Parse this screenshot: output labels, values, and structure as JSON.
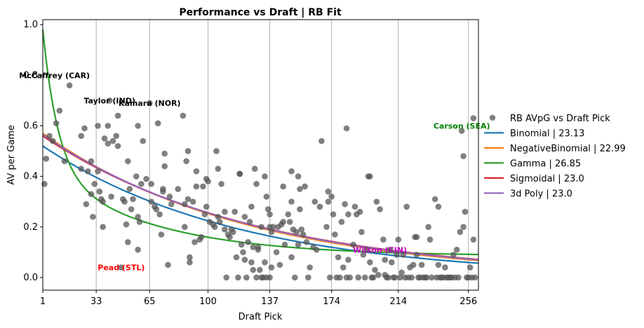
{
  "chart_data": {
    "type": "scatter",
    "title": "Performance vs Draft | RB Fit",
    "xlabel": "Draft Pick",
    "ylabel": "AV per Game",
    "xlim": [
      1,
      262
    ],
    "ylim": [
      -0.05,
      1.02
    ],
    "x_ticks": [
      1,
      33,
      65,
      100,
      137,
      174,
      214,
      256
    ],
    "y_ticks": [
      0.0,
      0.2,
      0.4,
      0.6,
      0.8,
      1.0
    ],
    "y_tick_labels": [
      "0.0",
      "0.2",
      "0.4",
      "0.6",
      "0.8",
      "1.0"
    ],
    "grid": "vertical lines at x ticks",
    "legend_position": "outside-right",
    "scatter": {
      "name": "RB AVpG vs Draft Pick",
      "color": "#555555",
      "points": [
        [
          2,
          0.37
        ],
        [
          3,
          0.47
        ],
        [
          5,
          0.56
        ],
        [
          7,
          0.54
        ],
        [
          9,
          0.61
        ],
        [
          11,
          0.66
        ],
        [
          14,
          0.46
        ],
        [
          17,
          0.76
        ],
        [
          24,
          0.56
        ],
        [
          24,
          0.43
        ],
        [
          26,
          0.59
        ],
        [
          27,
          0.29
        ],
        [
          28,
          0.42
        ],
        [
          30,
          0.46
        ],
        [
          30,
          0.33
        ],
        [
          31,
          0.24
        ],
        [
          32,
          0.37
        ],
        [
          34,
          0.6
        ],
        [
          34,
          0.42
        ],
        [
          35,
          0.34
        ],
        [
          36,
          0.31
        ],
        [
          37,
          0.3
        ],
        [
          37,
          0.2
        ],
        [
          38,
          0.55
        ],
        [
          40,
          0.6
        ],
        [
          40,
          0.53
        ],
        [
          41,
          0.7
        ],
        [
          42,
          0.32
        ],
        [
          43,
          0.54
        ],
        [
          45,
          0.56
        ],
        [
          46,
          0.64
        ],
        [
          46,
          0.52
        ],
        [
          48,
          0.04
        ],
        [
          49,
          0.31
        ],
        [
          50,
          0.3
        ],
        [
          51,
          0.21
        ],
        [
          52,
          0.14
        ],
        [
          52,
          0.46
        ],
        [
          53,
          0.35
        ],
        [
          54,
          0.27
        ],
        [
          55,
          0.31
        ],
        [
          57,
          0.4
        ],
        [
          58,
          0.6
        ],
        [
          58,
          0.24
        ],
        [
          58,
          0.11
        ],
        [
          59,
          0.22
        ],
        [
          60,
          0.37
        ],
        [
          61,
          0.54
        ],
        [
          63,
          0.39
        ],
        [
          65,
          0.69
        ],
        [
          66,
          0.37
        ],
        [
          66,
          0.3
        ],
        [
          68,
          0.28
        ],
        [
          69,
          0.27
        ],
        [
          70,
          0.61
        ],
        [
          71,
          0.25
        ],
        [
          72,
          0.17
        ],
        [
          73,
          0.34
        ],
        [
          73,
          0.35
        ],
        [
          74,
          0.49
        ],
        [
          74,
          0.44
        ],
        [
          76,
          0.05
        ],
        [
          77,
          0.32
        ],
        [
          78,
          0.29
        ],
        [
          82,
          0.35
        ],
        [
          85,
          0.64
        ],
        [
          86,
          0.2
        ],
        [
          86,
          0.29
        ],
        [
          87,
          0.46
        ],
        [
          88,
          0.5
        ],
        [
          88,
          0.31
        ],
        [
          89,
          0.08
        ],
        [
          89,
          0.06
        ],
        [
          91,
          0.3
        ],
        [
          92,
          0.14
        ],
        [
          93,
          0.42
        ],
        [
          93,
          0.36
        ],
        [
          95,
          0.15
        ],
        [
          96,
          0.16
        ],
        [
          97,
          0.36
        ],
        [
          98,
          0.25
        ],
        [
          99,
          0.28
        ],
        [
          99,
          0.39
        ],
        [
          100,
          0.38
        ],
        [
          101,
          0.22
        ],
        [
          103,
          0.21
        ],
        [
          104,
          0.2
        ],
        [
          105,
          0.5
        ],
        [
          106,
          0.24
        ],
        [
          106,
          0.43
        ],
        [
          107,
          0.22
        ],
        [
          108,
          0.37
        ],
        [
          110,
          0.19
        ],
        [
          110,
          0.26
        ],
        [
          111,
          0.0
        ],
        [
          112,
          0.17
        ],
        [
          113,
          0.16
        ],
        [
          114,
          0.19
        ],
        [
          115,
          0.18
        ],
        [
          116,
          0.26
        ],
        [
          117,
          0.08
        ],
        [
          118,
          0.0
        ],
        [
          119,
          0.41
        ],
        [
          119,
          0.41
        ],
        [
          120,
          0.13
        ],
        [
          121,
          0.1
        ],
        [
          122,
          0.24
        ],
        [
          122,
          0.07
        ],
        [
          123,
          0.0
        ],
        [
          124,
          0.14
        ],
        [
          125,
          0.22
        ],
        [
          126,
          0.28
        ],
        [
          126,
          0.06
        ],
        [
          127,
          0.03
        ],
        [
          127,
          0.12
        ],
        [
          128,
          0.43
        ],
        [
          129,
          0.0
        ],
        [
          129,
          0.37
        ],
        [
          130,
          0.11
        ],
        [
          130,
          0.12
        ],
        [
          131,
          0.03
        ],
        [
          132,
          0.0
        ],
        [
          132,
          0.2
        ],
        [
          133,
          0.0
        ],
        [
          134,
          0.4
        ],
        [
          134,
          0.06
        ],
        [
          135,
          0.0
        ],
        [
          135,
          0.32
        ],
        [
          136,
          0.27
        ],
        [
          137,
          0.25
        ],
        [
          137,
          0.0
        ],
        [
          137,
          0.2
        ],
        [
          138,
          0.04
        ],
        [
          138,
          0.18
        ],
        [
          139,
          0.2
        ],
        [
          141,
          0.1
        ],
        [
          142,
          0.2
        ],
        [
          143,
          0.05
        ],
        [
          144,
          0.21
        ],
        [
          145,
          0.36
        ],
        [
          145,
          0.22
        ],
        [
          146,
          0.13
        ],
        [
          148,
          0.25
        ],
        [
          149,
          0.22
        ],
        [
          150,
          0.42
        ],
        [
          150,
          0.08
        ],
        [
          150,
          0.3
        ],
        [
          151,
          0.19
        ],
        [
          152,
          0.0
        ],
        [
          153,
          0.18
        ],
        [
          154,
          0.13
        ],
        [
          154,
          0.4
        ],
        [
          155,
          0.35
        ],
        [
          155,
          0.27
        ],
        [
          156,
          0.19
        ],
        [
          157,
          0.17
        ],
        [
          158,
          0.36
        ],
        [
          159,
          0.14
        ],
        [
          160,
          0.0
        ],
        [
          161,
          0.04
        ],
        [
          163,
          0.12
        ],
        [
          164,
          0.3
        ],
        [
          165,
          0.11
        ],
        [
          167,
          0.28
        ],
        [
          168,
          0.54
        ],
        [
          171,
          0.2
        ],
        [
          172,
          0.3
        ],
        [
          172,
          0.34
        ],
        [
          173,
          0.0
        ],
        [
          174,
          0.32
        ],
        [
          175,
          0.25
        ],
        [
          176,
          0.17
        ],
        [
          177,
          0.0
        ],
        [
          178,
          0.08
        ],
        [
          179,
          0.0
        ],
        [
          180,
          0.22
        ],
        [
          181,
          0.04
        ],
        [
          182,
          0.29
        ],
        [
          183,
          0.0
        ],
        [
          183,
          0.59
        ],
        [
          184,
          0.07
        ],
        [
          184,
          0.25
        ],
        [
          185,
          0.0
        ],
        [
          187,
          0.13
        ],
        [
          188,
          0.28
        ],
        [
          189,
          0.25
        ],
        [
          190,
          0.0
        ],
        [
          191,
          0.26
        ],
        [
          192,
          0.18
        ],
        [
          193,
          0.09
        ],
        [
          194,
          0.0
        ],
        [
          195,
          0.11
        ],
        [
          196,
          0.4
        ],
        [
          197,
          0.4
        ],
        [
          197,
          0.06
        ],
        [
          198,
          0.0
        ],
        [
          199,
          0.0
        ],
        [
          200,
          0.03
        ],
        [
          201,
          0.3
        ],
        [
          202,
          0.01
        ],
        [
          203,
          0.27
        ],
        [
          205,
          0.15
        ],
        [
          206,
          0.01
        ],
        [
          206,
          0.07
        ],
        [
          207,
          0.0
        ],
        [
          208,
          0.0
        ],
        [
          209,
          0.11
        ],
        [
          210,
          0.06
        ],
        [
          211,
          0.0
        ],
        [
          212,
          0.0
        ],
        [
          213,
          0.09
        ],
        [
          214,
          0.15
        ],
        [
          215,
          0.0
        ],
        [
          216,
          0.02
        ],
        [
          217,
          0.09
        ],
        [
          218,
          0.0
        ],
        [
          219,
          0.28
        ],
        [
          220,
          0.0
        ],
        [
          221,
          0.04
        ],
        [
          222,
          0.0
        ],
        [
          223,
          0.05
        ],
        [
          224,
          0.16
        ],
        [
          225,
          0.09
        ],
        [
          225,
          0.16
        ],
        [
          226,
          0.0
        ],
        [
          227,
          0.0
        ],
        [
          228,
          0.05
        ],
        [
          229,
          0.0
        ],
        [
          230,
          0.0
        ],
        [
          231,
          0.0
        ],
        [
          232,
          0.2
        ],
        [
          233,
          0.15
        ],
        [
          234,
          0.0
        ],
        [
          236,
          0.31
        ],
        [
          237,
          0.0
        ],
        [
          238,
          0.05
        ],
        [
          238,
          0.28
        ],
        [
          239,
          0.0
        ],
        [
          240,
          0.0
        ],
        [
          241,
          0.0
        ],
        [
          242,
          0.04
        ],
        [
          243,
          0.0
        ],
        [
          244,
          0.0
        ],
        [
          245,
          0.0
        ],
        [
          246,
          0.0
        ],
        [
          247,
          0.09
        ],
        [
          248,
          0.0
        ],
        [
          249,
          0.11
        ],
        [
          250,
          0.0
        ],
        [
          251,
          0.18
        ],
        [
          252,
          0.58
        ],
        [
          253,
          0.2
        ],
        [
          253,
          0.48
        ],
        [
          254,
          0.26
        ],
        [
          255,
          0.0
        ],
        [
          256,
          0.0
        ],
        [
          257,
          0.04
        ],
        [
          258,
          0.0
        ],
        [
          259,
          0.63
        ],
        [
          259,
          0.15
        ],
        [
          260,
          0.0
        ]
      ]
    },
    "fits": [
      {
        "name": "Binomial | 23.13",
        "color": "#1f77b4",
        "kind": "exp",
        "a": 0.52,
        "b": 0.0085
      },
      {
        "name": "NegativeBinomial | 22.99",
        "color": "#ff7f0e",
        "kind": "exp",
        "a": 0.57,
        "b": 0.0082
      },
      {
        "name": "Gamma | 26.85",
        "color": "#2ca02c",
        "kind": "gamma"
      },
      {
        "name": "Sigmoidal | 23.0",
        "color": "#d62728",
        "kind": "exp",
        "a": 0.56,
        "b": 0.0079
      },
      {
        "name": "3d Poly | 23.0",
        "color": "#9467bd",
        "kind": "exp",
        "a": 0.565,
        "b": 0.008
      }
    ],
    "annotations": [
      {
        "text": "McCaffrey (CAR)",
        "x": 8,
        "y": 0.8,
        "color": "#000000"
      },
      {
        "text": "Taylor (IND)",
        "x": 41,
        "y": 0.7,
        "color": "#000000"
      },
      {
        "text": "Kamara (NOR)",
        "x": 65,
        "y": 0.69,
        "color": "#000000"
      },
      {
        "text": "Carson (SEA)",
        "x": 252,
        "y": 0.6,
        "color": "#008000"
      },
      {
        "text": "Pead (STL)",
        "x": 48,
        "y": 0.04,
        "color": "#ff0000"
      },
      {
        "text": "Wilson (CIN)",
        "x": 203,
        "y": 0.11,
        "color": "#bf00bf"
      }
    ]
  }
}
